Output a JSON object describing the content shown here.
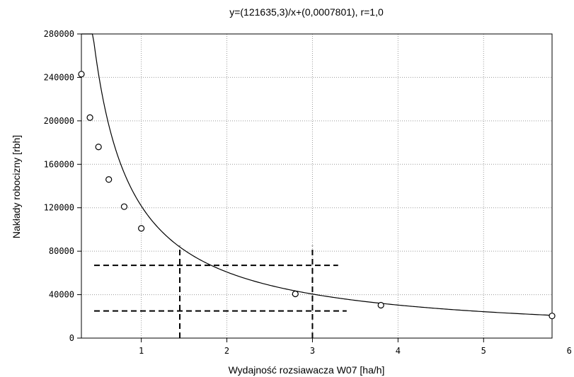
{
  "chart_data": {
    "type": "scatter",
    "title": "y=(121635,3)/x+(0,0007801), r=1,0",
    "xlabel": "Wydajność rozsiawacza W07 [ha/h]",
    "ylabel": "Nakłady robocizny [rbh]",
    "xlim": [
      0.3,
      5.8
    ],
    "ylim": [
      0,
      280000
    ],
    "xticks": [
      1,
      2,
      3,
      4,
      5,
      6
    ],
    "xtick_labels": [
      "1",
      "2",
      "3",
      "4",
      "5",
      "6"
    ],
    "yticks": [
      0,
      40000,
      80000,
      120000,
      160000,
      200000,
      240000,
      280000
    ],
    "ytick_labels": [
      "0",
      "40000",
      "80000",
      "120000",
      "160000",
      "200000",
      "240000",
      "280000"
    ],
    "grid": true,
    "fit": {
      "type": "reciprocal",
      "a": 121635.3,
      "b": 0.0007801
    },
    "points": [
      {
        "x": 0.3,
        "y": 243000
      },
      {
        "x": 0.4,
        "y": 203000
      },
      {
        "x": 0.5,
        "y": 176000
      },
      {
        "x": 0.62,
        "y": 146000
      },
      {
        "x": 0.8,
        "y": 121000
      },
      {
        "x": 1.0,
        "y": 101000
      },
      {
        "x": 2.8,
        "y": 40700
      },
      {
        "x": 3.8,
        "y": 30300
      },
      {
        "x": 5.8,
        "y": 20400
      }
    ],
    "reference_lines": [
      {
        "orientation": "vertical",
        "x": 1.45,
        "y_range": [
          0,
          85000
        ]
      },
      {
        "orientation": "vertical",
        "x": 3.0,
        "y_range": [
          0,
          85000
        ]
      },
      {
        "orientation": "horizontal",
        "y": 67000,
        "x_range": [
          0.3,
          3.3
        ]
      },
      {
        "orientation": "horizontal",
        "y": 25000,
        "x_range": [
          0.3,
          3.4
        ]
      }
    ]
  }
}
